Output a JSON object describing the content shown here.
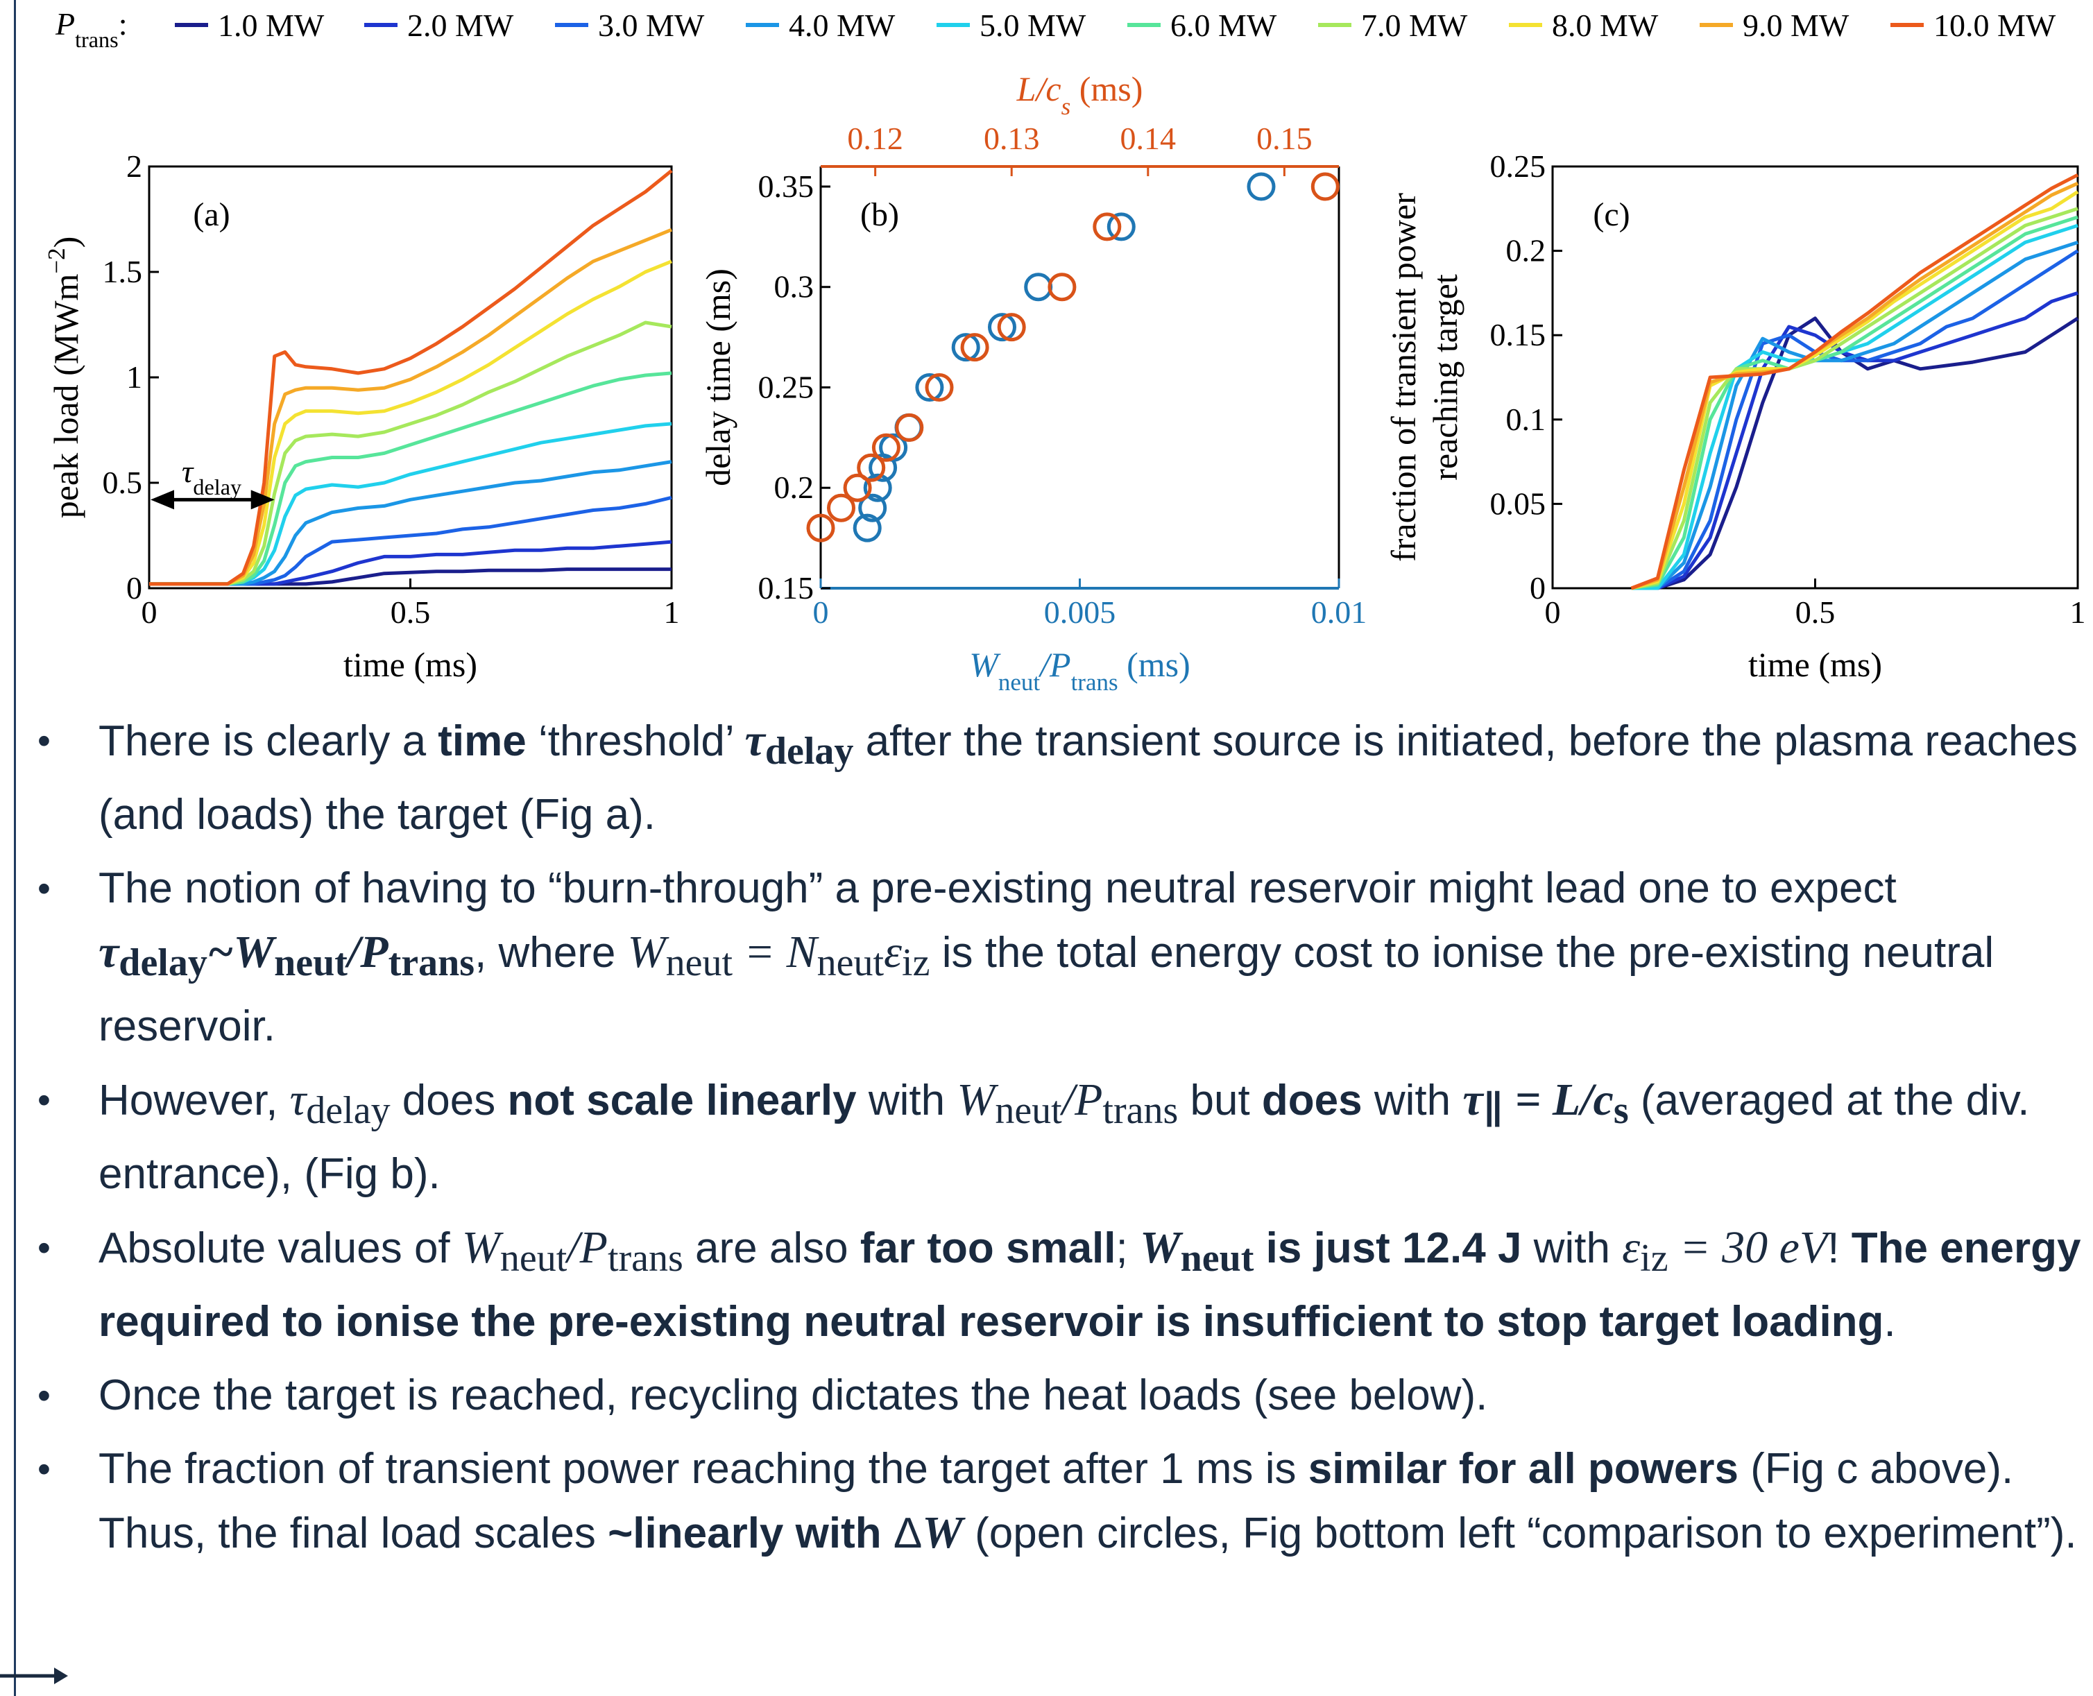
{
  "legend": {
    "label": "P",
    "label_sub": "trans",
    "label_suffix": ":",
    "entries": [
      "1.0 MW",
      "2.0 MW",
      "3.0 MW",
      "4.0 MW",
      "5.0 MW",
      "6.0 MW",
      "7.0 MW",
      "8.0 MW",
      "9.0 MW",
      "10.0 MW"
    ],
    "colors": [
      "#1a1e8c",
      "#1e35cf",
      "#1c62e6",
      "#1b96e6",
      "#20d0ec",
      "#57e59a",
      "#a6e85c",
      "#f4e232",
      "#f5a927",
      "#ec5a1b"
    ]
  },
  "panels": {
    "a": {
      "label": "(a)",
      "ylabel": "peak load (MWm",
      "ylabel_sup": "−2",
      "ylabel_close": ")",
      "xlabel": "time (ms)",
      "tau": "τ",
      "tau_sub": "delay",
      "xticks": [
        "0",
        "0.5",
        "1"
      ],
      "yticks": [
        "0",
        "0.5",
        "1",
        "1.5",
        "2"
      ]
    },
    "b": {
      "label": "(b)",
      "ylabel": "delay time (ms)",
      "xlabel_main": "W",
      "xlabel_sub1": "neut",
      "xlabel_mid": "/P",
      "xlabel_sub2": "trans",
      "xlabel_unit": " (ms)",
      "top_label": "L/c",
      "top_label_sub": "s",
      "top_label_unit": " (ms)",
      "xticks": [
        "0",
        "0.005",
        "0.01"
      ],
      "top_ticks": [
        "0.12",
        "0.13",
        "0.14",
        "0.15"
      ],
      "yticks": [
        "0.15",
        "0.2",
        "0.25",
        "0.3",
        "0.35"
      ]
    },
    "c": {
      "label": "(c)",
      "ylabel_line1": "fraction of transient power",
      "ylabel_line2": "reaching target",
      "xlabel": "time (ms)",
      "xticks": [
        "0",
        "0.5",
        "1"
      ],
      "yticks": [
        "0",
        "0.05",
        "0.1",
        "0.15",
        "0.2",
        "0.25"
      ]
    }
  },
  "chart_data": [
    {
      "type": "line",
      "panel": "a",
      "xlabel": "time (ms)",
      "ylabel": "peak load (MWm−2)",
      "xlim": [
        0,
        1
      ],
      "ylim": [
        0,
        2
      ],
      "grid": false,
      "x": [
        0,
        0.05,
        0.1,
        0.15,
        0.18,
        0.2,
        0.22,
        0.24,
        0.26,
        0.28,
        0.3,
        0.35,
        0.4,
        0.45,
        0.5,
        0.55,
        0.6,
        0.65,
        0.7,
        0.75,
        0.8,
        0.85,
        0.9,
        0.95,
        1.0
      ],
      "series": [
        {
          "name": "1.0 MW",
          "values": [
            0.02,
            0.02,
            0.02,
            0.02,
            0.02,
            0.02,
            0.02,
            0.02,
            0.02,
            0.02,
            0.02,
            0.03,
            0.05,
            0.07,
            0.075,
            0.08,
            0.08,
            0.085,
            0.085,
            0.085,
            0.09,
            0.09,
            0.09,
            0.09,
            0.09
          ]
        },
        {
          "name": "2.0 MW",
          "values": [
            0.02,
            0.02,
            0.02,
            0.02,
            0.02,
            0.02,
            0.02,
            0.02,
            0.03,
            0.04,
            0.05,
            0.08,
            0.12,
            0.15,
            0.15,
            0.16,
            0.16,
            0.17,
            0.18,
            0.18,
            0.19,
            0.19,
            0.2,
            0.21,
            0.22
          ]
        },
        {
          "name": "3.0 MW",
          "values": [
            0.02,
            0.02,
            0.02,
            0.02,
            0.02,
            0.02,
            0.03,
            0.04,
            0.06,
            0.1,
            0.15,
            0.22,
            0.23,
            0.24,
            0.25,
            0.26,
            0.28,
            0.29,
            0.31,
            0.33,
            0.35,
            0.37,
            0.38,
            0.4,
            0.43
          ]
        },
        {
          "name": "4.0 MW",
          "values": [
            0.02,
            0.02,
            0.02,
            0.02,
            0.02,
            0.03,
            0.05,
            0.08,
            0.15,
            0.25,
            0.31,
            0.36,
            0.38,
            0.39,
            0.42,
            0.44,
            0.46,
            0.48,
            0.5,
            0.51,
            0.53,
            0.55,
            0.56,
            0.58,
            0.6
          ]
        },
        {
          "name": "5.0 MW",
          "values": [
            0.02,
            0.02,
            0.02,
            0.02,
            0.03,
            0.05,
            0.09,
            0.18,
            0.34,
            0.44,
            0.47,
            0.49,
            0.48,
            0.5,
            0.54,
            0.57,
            0.6,
            0.63,
            0.66,
            0.69,
            0.71,
            0.73,
            0.75,
            0.77,
            0.78
          ]
        },
        {
          "name": "6.0 MW",
          "values": [
            0.02,
            0.02,
            0.02,
            0.02,
            0.03,
            0.06,
            0.13,
            0.3,
            0.5,
            0.58,
            0.6,
            0.62,
            0.62,
            0.64,
            0.68,
            0.72,
            0.76,
            0.8,
            0.84,
            0.88,
            0.92,
            0.96,
            0.99,
            1.01,
            1.02
          ]
        },
        {
          "name": "7.0 MW",
          "values": [
            0.02,
            0.02,
            0.02,
            0.02,
            0.04,
            0.08,
            0.2,
            0.45,
            0.64,
            0.7,
            0.72,
            0.73,
            0.72,
            0.74,
            0.78,
            0.82,
            0.87,
            0.93,
            0.98,
            1.04,
            1.1,
            1.15,
            1.2,
            1.26,
            1.24
          ]
        },
        {
          "name": "8.0 MW",
          "values": [
            0.02,
            0.02,
            0.02,
            0.02,
            0.05,
            0.12,
            0.3,
            0.62,
            0.78,
            0.82,
            0.84,
            0.84,
            0.83,
            0.84,
            0.88,
            0.93,
            0.99,
            1.06,
            1.14,
            1.22,
            1.3,
            1.37,
            1.43,
            1.5,
            1.55
          ]
        },
        {
          "name": "9.0 MW",
          "values": [
            0.02,
            0.02,
            0.02,
            0.02,
            0.06,
            0.16,
            0.4,
            0.78,
            0.92,
            0.94,
            0.95,
            0.95,
            0.94,
            0.95,
            0.99,
            1.05,
            1.12,
            1.2,
            1.29,
            1.38,
            1.47,
            1.55,
            1.6,
            1.65,
            1.7
          ]
        },
        {
          "name": "10.0 MW",
          "values": [
            0.02,
            0.02,
            0.02,
            0.02,
            0.07,
            0.2,
            0.5,
            1.1,
            1.12,
            1.06,
            1.05,
            1.04,
            1.02,
            1.04,
            1.09,
            1.16,
            1.24,
            1.33,
            1.42,
            1.52,
            1.62,
            1.72,
            1.8,
            1.88,
            1.98
          ]
        }
      ]
    },
    {
      "type": "scatter",
      "panel": "b",
      "xlabel": "Wneut/Ptrans (ms)",
      "ylabel": "delay time (ms)",
      "top_xlabel": "L/cs (ms)",
      "xlim": [
        0,
        0.01
      ],
      "top_xlim": [
        0.116,
        0.154
      ],
      "ylim": [
        0.15,
        0.36
      ],
      "grid": false,
      "series": [
        {
          "axis": "bottom",
          "color": "#1f77b4",
          "x": [
            0.0009,
            0.001,
            0.0011,
            0.0012,
            0.0014,
            0.0017,
            0.0021,
            0.0028,
            0.0035,
            0.0042,
            0.0058,
            0.0085
          ],
          "y": [
            0.18,
            0.19,
            0.2,
            0.21,
            0.22,
            0.23,
            0.25,
            0.27,
            0.28,
            0.3,
            0.33,
            0.35
          ]
        },
        {
          "axis": "top",
          "color": "#d95319",
          "x": [
            0.116,
            0.1175,
            0.1187,
            0.1197,
            0.1208,
            0.1225,
            0.1247,
            0.1273,
            0.13,
            0.1337,
            0.137,
            0.153
          ],
          "y": [
            0.18,
            0.19,
            0.2,
            0.21,
            0.22,
            0.23,
            0.25,
            0.27,
            0.28,
            0.3,
            0.33,
            0.35
          ]
        }
      ]
    },
    {
      "type": "line",
      "panel": "c",
      "xlabel": "time (ms)",
      "ylabel": "fraction of transient power reaching target",
      "xlim": [
        0,
        1
      ],
      "ylim": [
        0,
        0.25
      ],
      "grid": false,
      "x": [
        0.15,
        0.2,
        0.25,
        0.3,
        0.35,
        0.4,
        0.45,
        0.5,
        0.55,
        0.6,
        0.65,
        0.7,
        0.75,
        0.8,
        0.85,
        0.9,
        0.95,
        1.0
      ],
      "series": [
        {
          "name": "1.0 MW",
          "values": [
            0,
            0,
            0.005,
            0.02,
            0.06,
            0.11,
            0.15,
            0.16,
            0.14,
            0.13,
            0.135,
            0.13,
            0.132,
            0.134,
            0.137,
            0.14,
            0.15,
            0.16
          ]
        },
        {
          "name": "2.0 MW",
          "values": [
            0,
            0,
            0.007,
            0.03,
            0.08,
            0.13,
            0.155,
            0.15,
            0.14,
            0.135,
            0.135,
            0.14,
            0.145,
            0.15,
            0.155,
            0.16,
            0.17,
            0.175
          ]
        },
        {
          "name": "3.0 MW",
          "values": [
            0,
            0,
            0.01,
            0.04,
            0.1,
            0.145,
            0.15,
            0.14,
            0.135,
            0.135,
            0.14,
            0.145,
            0.155,
            0.16,
            0.17,
            0.18,
            0.19,
            0.2
          ]
        },
        {
          "name": "4.0 MW",
          "values": [
            0,
            0,
            0.015,
            0.06,
            0.12,
            0.148,
            0.14,
            0.135,
            0.135,
            0.14,
            0.145,
            0.155,
            0.165,
            0.175,
            0.185,
            0.195,
            0.2,
            0.205
          ]
        },
        {
          "name": "5.0 MW",
          "values": [
            0,
            0,
            0.02,
            0.08,
            0.13,
            0.14,
            0.135,
            0.135,
            0.14,
            0.145,
            0.155,
            0.165,
            0.175,
            0.185,
            0.195,
            0.205,
            0.21,
            0.215
          ]
        },
        {
          "name": "6.0 MW",
          "values": [
            0,
            0.002,
            0.03,
            0.1,
            0.13,
            0.135,
            0.13,
            0.135,
            0.14,
            0.15,
            0.16,
            0.17,
            0.18,
            0.19,
            0.2,
            0.21,
            0.215,
            0.22
          ]
        },
        {
          "name": "7.0 MW",
          "values": [
            0,
            0.003,
            0.04,
            0.11,
            0.13,
            0.13,
            0.13,
            0.135,
            0.145,
            0.155,
            0.165,
            0.175,
            0.185,
            0.195,
            0.205,
            0.215,
            0.22,
            0.225
          ]
        },
        {
          "name": "8.0 MW",
          "values": [
            0,
            0.004,
            0.05,
            0.12,
            0.128,
            0.13,
            0.13,
            0.138,
            0.148,
            0.158,
            0.17,
            0.18,
            0.19,
            0.2,
            0.21,
            0.22,
            0.225,
            0.235
          ]
        },
        {
          "name": "9.0 MW",
          "values": [
            0,
            0.005,
            0.06,
            0.122,
            0.127,
            0.128,
            0.13,
            0.14,
            0.15,
            0.16,
            0.172,
            0.183,
            0.193,
            0.203,
            0.213,
            0.223,
            0.233,
            0.24
          ]
        },
        {
          "name": "10.0 MW",
          "values": [
            0,
            0.006,
            0.07,
            0.125,
            0.126,
            0.127,
            0.13,
            0.14,
            0.152,
            0.163,
            0.175,
            0.187,
            0.197,
            0.207,
            0.217,
            0.227,
            0.237,
            0.245
          ]
        }
      ]
    }
  ],
  "bullets": [
    {
      "parts": [
        {
          "t": "There is clearly a "
        },
        {
          "t": "time",
          "b": true
        },
        {
          "t": " ‘threshold’ "
        },
        {
          "m": "τ",
          "sub": "delay",
          "bold": true
        },
        {
          "t": "  after the transient source is initiated, before the plasma reaches (and loads) the target (Fig a)."
        }
      ]
    },
    {
      "parts": [
        {
          "t": "The notion of having to “burn-through” a pre-existing neutral reservoir might lead one to expect "
        },
        {
          "m": "τ",
          "sub": "delay",
          "bold": true
        },
        {
          "m": "~",
          "bold": true
        },
        {
          "m": "W",
          "sub": "neut",
          "bold": true
        },
        {
          "m": "/",
          "bold": true
        },
        {
          "m": "P",
          "sub": "trans",
          "bold": true
        },
        {
          "t": ", where "
        },
        {
          "m": "W",
          "sub": "neut"
        },
        {
          "m": " = "
        },
        {
          "m": "N",
          "sub": "neut"
        },
        {
          "m": "ε",
          "sub": "iz"
        },
        {
          "t": " is the total energy cost to ionise the pre-existing neutral reservoir."
        }
      ]
    },
    {
      "parts": [
        {
          "t": "However, "
        },
        {
          "m": "τ",
          "sub": "delay"
        },
        {
          "t": " does "
        },
        {
          "t": "not scale linearly",
          "b": true
        },
        {
          "t": " with "
        },
        {
          "m": "W",
          "sub": "neut"
        },
        {
          "m": "/"
        },
        {
          "m": "P",
          "sub": "trans"
        },
        {
          "t": " but "
        },
        {
          "t": "does",
          "b": true
        },
        {
          "t": " with "
        },
        {
          "m": "τ",
          "sub": "∥",
          "bold": true
        },
        {
          "m": " = ",
          "bold": true
        },
        {
          "m": "L/c",
          "sub": "s",
          "bold": true
        },
        {
          "t": " (averaged at the div. entrance), (Fig b)."
        }
      ]
    },
    {
      "parts": [
        {
          "t": "Absolute values of "
        },
        {
          "m": "W",
          "sub": "neut"
        },
        {
          "m": "/"
        },
        {
          "m": "P",
          "sub": "trans"
        },
        {
          "t": " are also "
        },
        {
          "t": "far too small",
          "b": true
        },
        {
          "t": "; "
        },
        {
          "m": "W",
          "sub": "neut",
          "bold": true
        },
        {
          "t": " is just 12.4 J",
          "b": true
        },
        {
          "t": " with "
        },
        {
          "m": "ε",
          "sub": "iz"
        },
        {
          "m": " = 30 eV"
        },
        {
          "t": "! "
        },
        {
          "t": "The energy required to ionise the pre-existing neutral reservoir is insufficient to stop target loading",
          "b": true
        },
        {
          "t": "."
        }
      ]
    },
    {
      "parts": [
        {
          "t": "Once the target is reached, recycling dictates the heat loads (see below)."
        }
      ]
    },
    {
      "parts": [
        {
          "t": "The fraction of transient power reaching the target after 1 ms is "
        },
        {
          "t": "similar for all powers",
          "b": true
        },
        {
          "t": " (Fig c above). Thus, the final load scales "
        },
        {
          "t": "~linearly with ",
          "b": true
        },
        {
          "t": "Δ"
        },
        {
          "m": "W",
          "bold": true
        },
        {
          "t": " (open circles, Fig bottom left “comparison to experiment”)."
        }
      ]
    }
  ]
}
